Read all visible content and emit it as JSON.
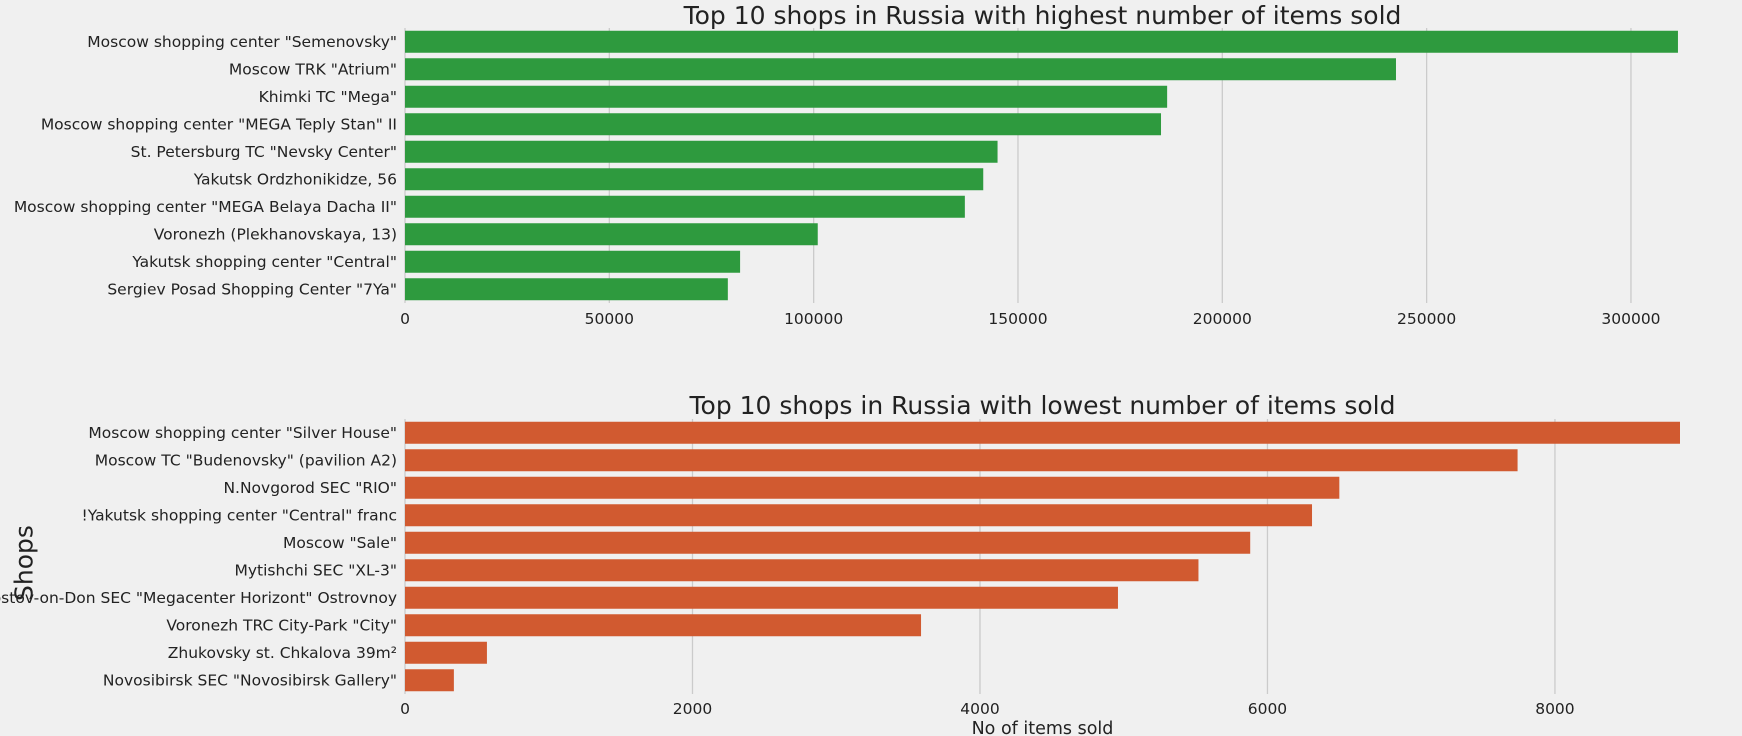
{
  "chart_data": [
    {
      "type": "bar",
      "orientation": "horizontal",
      "title": "Top 10 shops in Russia with highest number of items sold",
      "xlabel": "",
      "ylabel": "",
      "color": "#2e9a3e",
      "grid": true,
      "xlim": [
        0,
        312000
      ],
      "xticks": [
        0,
        50000,
        100000,
        150000,
        200000,
        250000,
        300000
      ],
      "categories": [
        "Moscow shopping center \"Semenovsky\"",
        "Moscow TRK \"Atrium\"",
        "Khimki TC \"Mega\"",
        "Moscow shopping center \"MEGA Teply Stan\" II",
        "St. Petersburg TC \"Nevsky Center\"",
        "Yakutsk Ordzhonikidze, 56",
        "Moscow shopping center \"MEGA Belaya Dacha II\"",
        "Voronezh (Plekhanovskaya, 13)",
        "Yakutsk shopping center \"Central\"",
        "Sergiev Posad Shopping Center \"7Ya\""
      ],
      "values": [
        311500,
        242500,
        186500,
        185000,
        145000,
        141500,
        137000,
        101000,
        82000,
        79000
      ]
    },
    {
      "type": "bar",
      "orientation": "horizontal",
      "title": "Top 10 shops in Russia with lowest number of items sold",
      "xlabel": "No of items sold",
      "ylabel": "Shops",
      "color": "#d15a30",
      "grid": true,
      "xlim": [
        0,
        8870
      ],
      "xticks": [
        0,
        2000,
        4000,
        6000,
        8000
      ],
      "categories": [
        "Moscow shopping center \"Silver House\"",
        "Moscow TC \"Budenovsky\" (pavilion A2)",
        "N.Novgorod SEC \"RIO\"",
        "!Yakutsk shopping center \"Central\" franc",
        "Moscow \"Sale\"",
        "Mytishchi SEC \"XL-3\"",
        "Rostov-on-Don SEC \"Megacenter Horizont\" Ostrovnoy",
        "Voronezh TRC City-Park \"City\"",
        "Zhukovsky st. Chkalova 39m²",
        "Novosibirsk SEC \"Novosibirsk Gallery\""
      ],
      "values": [
        8870,
        7740,
        6500,
        6310,
        5880,
        5520,
        4960,
        3590,
        570,
        340
      ]
    }
  ]
}
